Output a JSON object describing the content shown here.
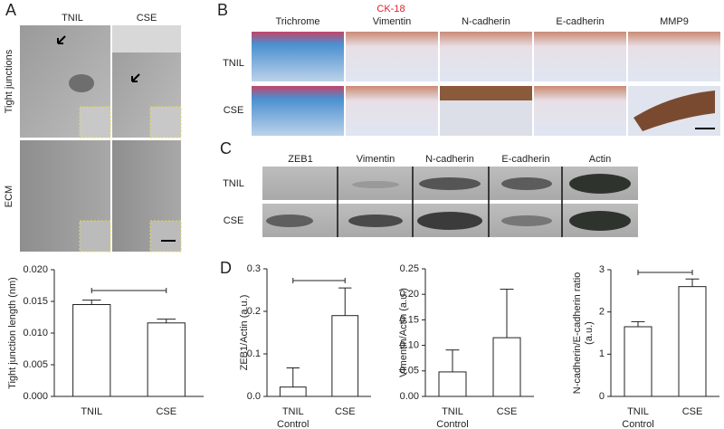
{
  "panel_A": {
    "label": "A",
    "columns": [
      "TNIL",
      "CSE"
    ],
    "rows": [
      "Tight junctions",
      "ECM"
    ]
  },
  "panel_B": {
    "label": "B",
    "marker": "CK-18",
    "columns": [
      "Trichrome",
      "Vimentin",
      "N-cadherin",
      "E-cadherin",
      "MMP9"
    ],
    "rows": [
      "TNIL",
      "CSE"
    ]
  },
  "panel_C": {
    "label": "C",
    "columns": [
      "ZEB1",
      "Vimentin",
      "N-cadherin",
      "E-cadherin",
      "Actin"
    ],
    "rows": [
      "TNIL",
      "CSE"
    ]
  },
  "panel_D": {
    "label": "D"
  },
  "chart_data": [
    {
      "type": "bar",
      "ylabel": [
        "Tight junction length (nm)"
      ],
      "categories": [
        "TNIL",
        "CSE"
      ],
      "values": [
        0.0145,
        0.0116
      ],
      "errors": [
        0.0007,
        0.0006
      ],
      "color": "#ffffff",
      "ylim": [
        0,
        0.02
      ],
      "yticks": [
        {
          "value": 0,
          "label": "0.000"
        },
        0.005,
        {
          "value": 0.01,
          "label": "0.010"
        },
        0.015,
        {
          "value": 0.02,
          "label": "0.020"
        }
      ],
      "significance": true
    },
    {
      "type": "bar",
      "ylabel": [
        "ZEB1/Actin (a.u.)"
      ],
      "categories": [
        "TNIL",
        "CSE"
      ],
      "category_note": "Control",
      "values": [
        0.022,
        0.19
      ],
      "errors": [
        0.045,
        0.065
      ],
      "color": "#ffffff",
      "ylim": [
        0,
        0.3
      ],
      "yticks": [
        {
          "value": 0,
          "label": "0.0"
        },
        0.1,
        0.2,
        0.3
      ],
      "significance": true
    },
    {
      "type": "bar",
      "ylabel": [
        "Vimentin/Actin (a.u.)"
      ],
      "categories": [
        "TNIL",
        "CSE"
      ],
      "category_note": "Control",
      "values": [
        0.048,
        0.115
      ],
      "errors": [
        0.043,
        0.095
      ],
      "color": "#ffffff",
      "ylim": [
        0,
        0.25
      ],
      "yticks": [
        {
          "value": 0,
          "label": "0.00"
        },
        0.05,
        {
          "value": 0.1,
          "label": "0.10"
        },
        0.15,
        {
          "value": 0.2,
          "label": "0.20"
        },
        0.25
      ],
      "significance": false
    },
    {
      "type": "bar",
      "ylabel": [
        "N-cadherin/E-cadherin ratio",
        "(a.u.)"
      ],
      "categories": [
        "TNIL",
        "CSE"
      ],
      "category_note": "Control",
      "values": [
        1.65,
        2.6
      ],
      "errors": [
        0.12,
        0.18
      ],
      "color": "#ffffff",
      "ylim": [
        0,
        3
      ],
      "yticks": [
        0,
        1,
        2,
        3
      ],
      "significance": true
    }
  ]
}
